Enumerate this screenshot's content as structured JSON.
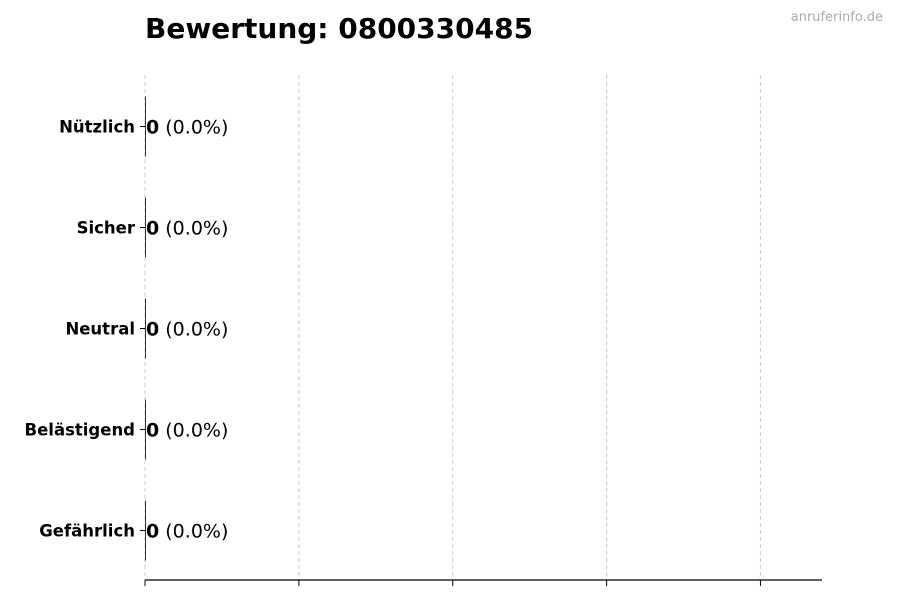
{
  "title": "Bewertung: 0800330485",
  "watermark": "anruferinfo.de",
  "chart_data": {
    "type": "bar",
    "orientation": "horizontal",
    "title": "Bewertung: 0800330485",
    "categories": [
      "Nützlich",
      "Sicher",
      "Neutral",
      "Belästigend",
      "Gefährlich"
    ],
    "values": [
      0,
      0,
      0,
      0,
      0
    ],
    "labels": [
      {
        "count": "0",
        "percent": "(0.0%)"
      },
      {
        "count": "0",
        "percent": "(0.0%)"
      },
      {
        "count": "0",
        "percent": "(0.0%)"
      },
      {
        "count": "0",
        "percent": "(0.0%)"
      },
      {
        "count": "0",
        "percent": "(0.0%)"
      }
    ],
    "xlim": [
      0,
      4.4
    ],
    "xticks": [
      0,
      1,
      2,
      3,
      4
    ],
    "xtick_labels_shown": false,
    "grid": "vertical dashed",
    "bar_color": "#333333",
    "grid_color": "#cccccc"
  }
}
